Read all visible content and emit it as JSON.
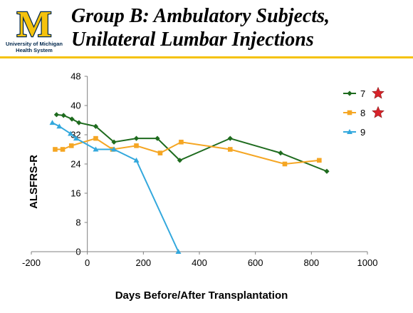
{
  "header": {
    "logo_letter": "M",
    "logo_line1": "University of Michigan",
    "logo_line2": "Health System",
    "title_line1": "Group B: Ambulatory Subjects,",
    "title_line2": "Unilateral Lumbar Injections"
  },
  "colors": {
    "maize": "#f5c20c",
    "navy": "#00274c",
    "star": "#d8232a"
  },
  "chart_data": {
    "type": "line",
    "title": "",
    "xlabel": "Days Before/After Transplantation",
    "ylabel": "ALSFRS-R",
    "xlim": [
      -200,
      1000
    ],
    "ylim": [
      0,
      48
    ],
    "xticks": [
      -200,
      0,
      200,
      400,
      600,
      800,
      1000
    ],
    "yticks": [
      0,
      8,
      16,
      24,
      32,
      40,
      48
    ],
    "grid": false,
    "legend_position": "top-right",
    "series": [
      {
        "name": "7",
        "color": "#1e6b1e",
        "marker": "diamond",
        "starred": true,
        "points": [
          [
            -110,
            37.5
          ],
          [
            -85,
            37.3
          ],
          [
            -55,
            36.3
          ],
          [
            -30,
            35.3
          ],
          [
            30,
            34.3
          ],
          [
            95,
            30.0
          ],
          [
            175,
            31.0
          ],
          [
            250,
            31.0
          ],
          [
            330,
            25.0
          ],
          [
            510,
            31.0
          ],
          [
            690,
            27.0
          ],
          [
            855,
            22.0
          ]
        ]
      },
      {
        "name": "8",
        "color": "#f5a623",
        "marker": "square",
        "starred": true,
        "points": [
          [
            -115,
            28.0
          ],
          [
            -88,
            28.0
          ],
          [
            -57,
            29.0
          ],
          [
            30,
            31.0
          ],
          [
            90,
            28.0
          ],
          [
            175,
            29.0
          ],
          [
            260,
            27.0
          ],
          [
            335,
            30.0
          ],
          [
            510,
            28.0
          ],
          [
            705,
            24.0
          ],
          [
            828,
            25.0
          ]
        ]
      },
      {
        "name": "9",
        "color": "#33a8dd",
        "marker": "triangle",
        "starred": false,
        "points": [
          [
            -125,
            35.3
          ],
          [
            -100,
            34.3
          ],
          [
            -60,
            32.3
          ],
          [
            -40,
            31.0
          ],
          [
            30,
            28.0
          ],
          [
            95,
            28.0
          ],
          [
            175,
            25.0
          ],
          [
            325,
            0.0
          ]
        ]
      }
    ]
  }
}
